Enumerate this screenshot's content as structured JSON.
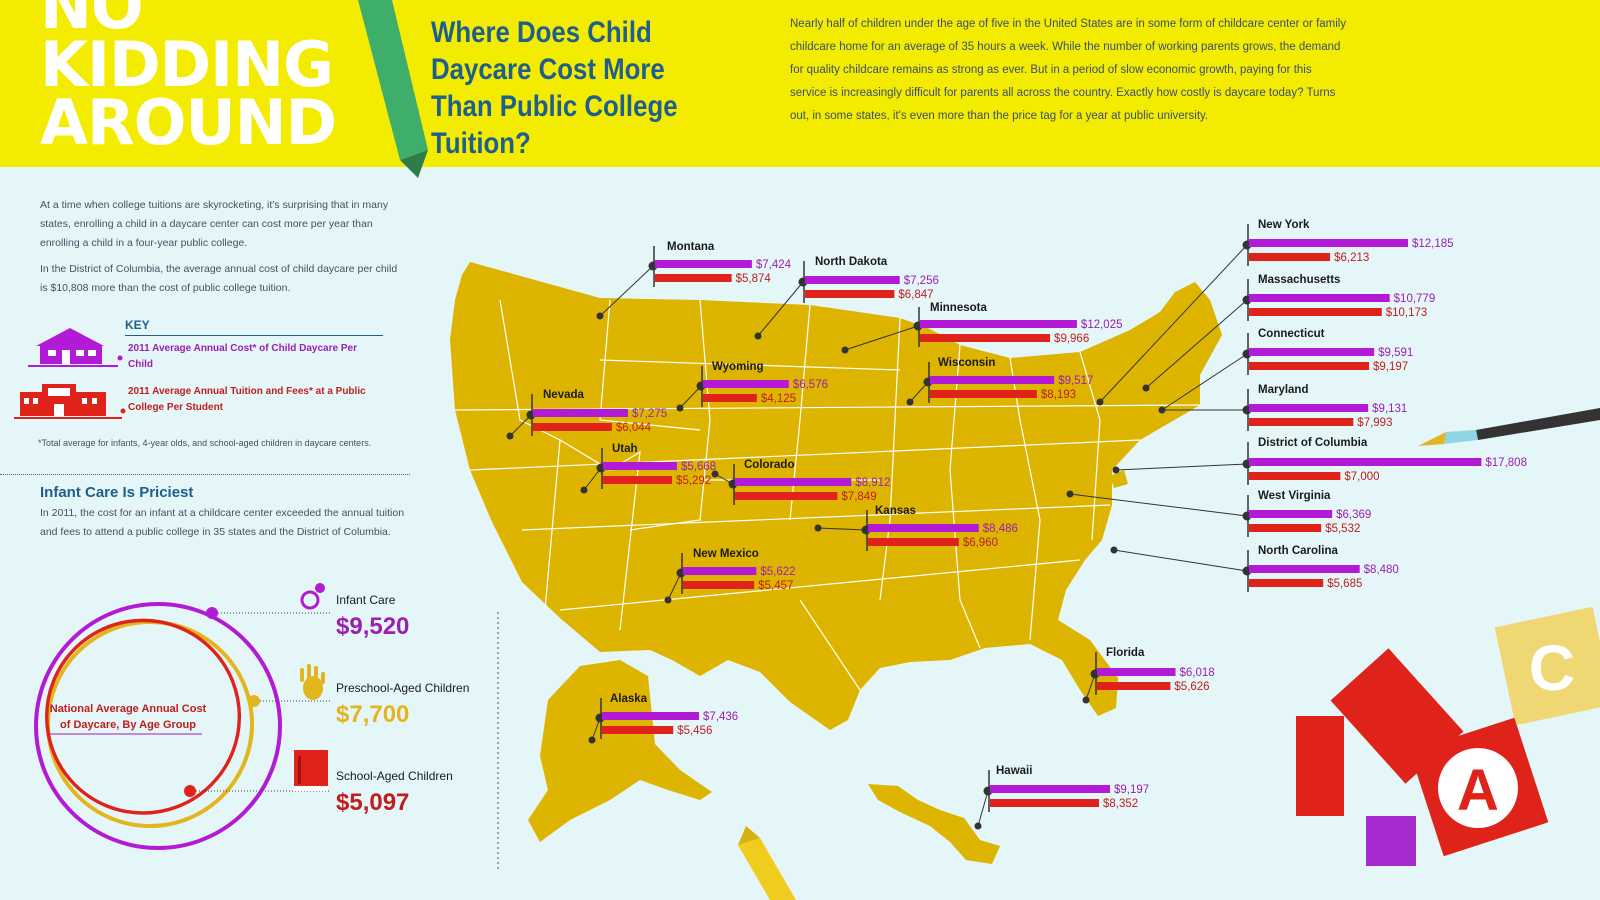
{
  "header": {
    "headline": [
      "NO",
      "KIDDING",
      "AROUND"
    ],
    "question": "Where Does Child Daycare Cost More Than Public College Tuition?",
    "intro": "Nearly half of children under the age of five in the United States are in some form of childcare center or family childcare home for an average of 35 hours a week. While the number of working parents grows, the demand for quality childcare remains as strong as ever. But in a period of slow economic growth, paying for this service is increasingly difficult for parents all across the country. Exactly how costly is daycare today? Turns out, in some states, it's even more than the price tag for a year at public university."
  },
  "sidebar": {
    "para1": "At a time when college tuitions are skyrocketing, it's surprising that in many states, enrolling a child in a daycare center can cost more per year than enrolling a child in a four-year public college.",
    "para2": "In the District of Columbia, the average annual cost of child daycare per child is $10,808 more than the cost of public college tuition.",
    "key_title": "KEY",
    "key_daycare": "2011 Average Annual Cost* of Child Daycare Per Child",
    "key_college": "2011 Average Annual Tuition and Fees* at a Public College Per Student",
    "footnote": "*Total average for infants, 4-year olds, and school-aged children in daycare centers.",
    "infant_heading": "Infant Care Is Priciest",
    "infant_text": "In 2011, the cost for an infant at a childcare center exceeded the annual tuition and fees to attend a public college in 35 states and the District of Columbia."
  },
  "colors": {
    "banner": "#f4ec00",
    "map": "#ddb400",
    "daycare": "#b21ad6",
    "college": "#e0231a",
    "label_text": "#1b1b1b",
    "daycare_text": "#9b1fb0",
    "college_text": "#c01d1d",
    "preschool": "#e3b51e"
  },
  "chart_data": [
    {
      "type": "bar",
      "series": [
        {
          "name": "2011 Average Annual Cost* of Child Daycare Per Child",
          "values": [
            7424,
            7256,
            12025,
            6576,
            9517,
            7275,
            5668,
            8912,
            8486,
            5622,
            7436,
            9197,
            6018,
            12185,
            10779,
            9591,
            9131,
            17808,
            6369,
            8480
          ]
        },
        {
          "name": "2011 Average Annual Tuition and Fees* at a Public College Per Student",
          "values": [
            5874,
            6847,
            9966,
            4125,
            8193,
            6044,
            5292,
            7849,
            6960,
            5457,
            5456,
            8352,
            5626,
            6213,
            10173,
            9197,
            7993,
            7000,
            5532,
            5685
          ]
        }
      ],
      "categories": [
        "Montana",
        "North Dakota",
        "Minnesota",
        "Wyoming",
        "Wisconsin",
        "Nevada",
        "Utah",
        "Colorado",
        "Kansas",
        "New Mexico",
        "Alaska",
        "Hawaii",
        "Florida",
        "New York",
        "Massachusetts",
        "Connecticut",
        "Maryland",
        "District of Columbia",
        "West Virginia",
        "North Carolina"
      ],
      "value_labels": {
        "daycare": [
          "$7,424",
          "$7,256",
          "$12,025",
          "$6,576",
          "$9,517",
          "$7,275",
          "$5,668",
          "$8,912",
          "$8,486",
          "$5,622",
          "$7,436",
          "$9,197",
          "$6,018",
          "$12,185",
          "$10,779",
          "$9,591",
          "$9,131",
          "$17,808",
          "$6,369",
          "$8,480"
        ],
        "college": [
          "$5,874",
          "$6,847",
          "$9,966",
          "$4,125",
          "$8,193",
          "$6,044",
          "$5,292",
          "$7,849",
          "$6,960",
          "$5,457",
          "$5,456",
          "$8,352",
          "$5,626",
          "$6,213",
          "$10,173",
          "$9,197",
          "$7,993",
          "$7,000",
          "$5,532",
          "$5,685"
        ]
      }
    },
    {
      "type": "pie",
      "title": "National Average Annual Cost of Daycare, By Age Group",
      "categories": [
        "Infant Care",
        "Preschool-Aged Children",
        "School-Aged Children"
      ],
      "values": [
        9520,
        7700,
        5097
      ],
      "value_labels": [
        "$9,520",
        "$7,700",
        "$5,097"
      ]
    }
  ]
}
